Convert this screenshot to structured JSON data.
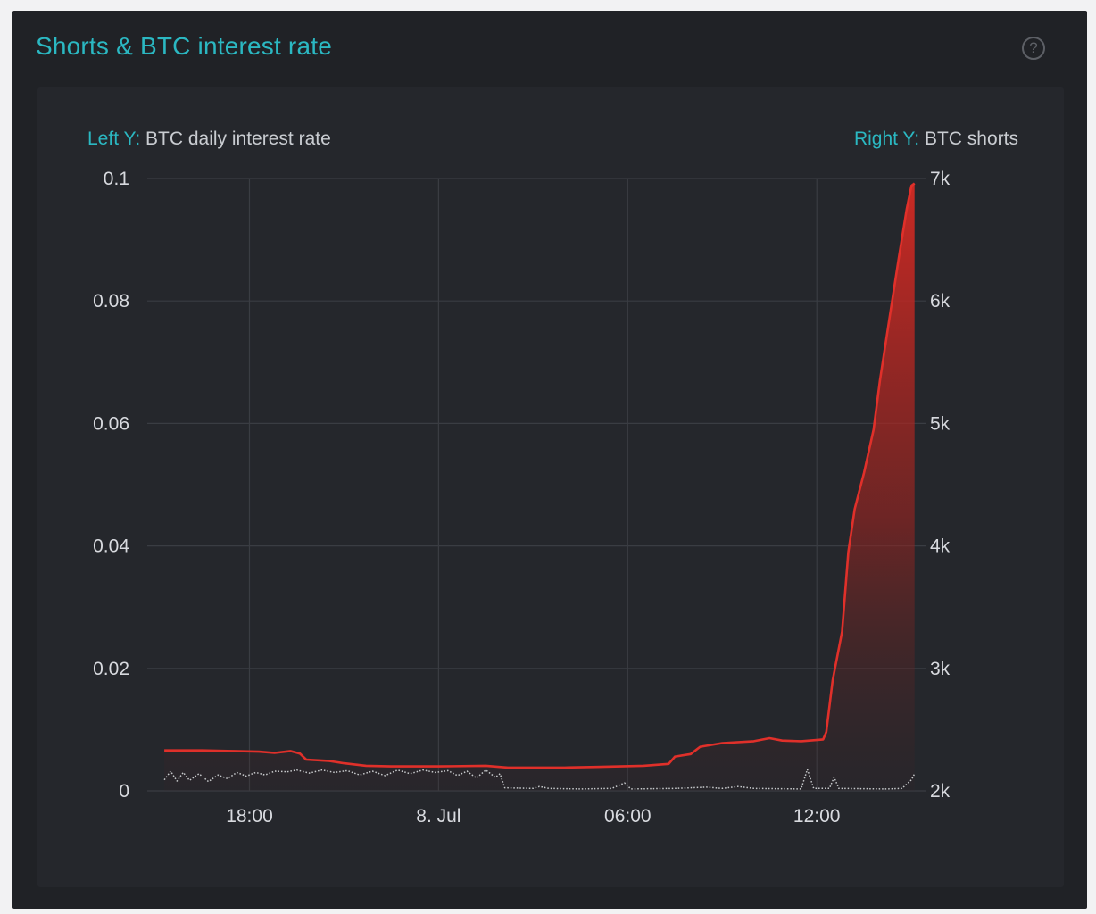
{
  "panel": {
    "title": "Shorts & BTC interest rate",
    "help_icon": "question-circle-icon"
  },
  "axis_captions": {
    "left_key": "Left Y:",
    "left_value": "BTC daily interest rate",
    "right_key": "Right Y:",
    "right_value": "BTC shorts"
  },
  "colors": {
    "background": "#202226",
    "card": "#25272c",
    "accent": "#2bb8c2",
    "shorts_line": "#e0302a",
    "rate_line": "#c8cacd",
    "grid": "#3a3d43"
  },
  "chart_data": {
    "type": "line",
    "x_unit": "hours since 7 Jul 00:00",
    "x_ticks": [
      {
        "label": "18:00",
        "x": 18
      },
      {
        "label": "8. Jul",
        "x": 24
      },
      {
        "label": "06:00",
        "x": 30
      },
      {
        "label": "12:00",
        "x": 36
      }
    ],
    "xlim": [
      14.9,
      39.25
    ],
    "left_axis": {
      "label": "BTC daily interest rate",
      "ylim": [
        0,
        0.1
      ],
      "ticks": [
        {
          "value": 0,
          "label": "0"
        },
        {
          "value": 0.02,
          "label": "0.02"
        },
        {
          "value": 0.04,
          "label": "0.04"
        },
        {
          "value": 0.06,
          "label": "0.06"
        },
        {
          "value": 0.08,
          "label": "0.08"
        },
        {
          "value": 0.1,
          "label": "0.1"
        }
      ]
    },
    "right_axis": {
      "label": "BTC shorts",
      "ylim": [
        2000,
        7000
      ],
      "ticks": [
        {
          "value": 2000,
          "label": "2k"
        },
        {
          "value": 3000,
          "label": "3k"
        },
        {
          "value": 4000,
          "label": "4k"
        },
        {
          "value": 5000,
          "label": "5k"
        },
        {
          "value": 6000,
          "label": "6k"
        },
        {
          "value": 7000,
          "label": "7k"
        }
      ]
    },
    "grid": true,
    "legend": "none",
    "series": [
      {
        "name": "BTC shorts",
        "axis": "right",
        "style": "area",
        "points": [
          [
            15.3,
            2330
          ],
          [
            16.5,
            2330
          ],
          [
            17.5,
            2325
          ],
          [
            18.3,
            2320
          ],
          [
            18.8,
            2310
          ],
          [
            19.3,
            2325
          ],
          [
            19.6,
            2305
          ],
          [
            19.8,
            2255
          ],
          [
            20.5,
            2245
          ],
          [
            21.0,
            2225
          ],
          [
            21.7,
            2205
          ],
          [
            22.5,
            2200
          ],
          [
            24.0,
            2200
          ],
          [
            25.5,
            2205
          ],
          [
            26.2,
            2190
          ],
          [
            27.0,
            2190
          ],
          [
            28.0,
            2190
          ],
          [
            29.0,
            2195
          ],
          [
            30.5,
            2205
          ],
          [
            31.3,
            2220
          ],
          [
            31.5,
            2280
          ],
          [
            32.0,
            2300
          ],
          [
            32.3,
            2360
          ],
          [
            33.0,
            2390
          ],
          [
            34.0,
            2405
          ],
          [
            34.5,
            2430
          ],
          [
            34.9,
            2410
          ],
          [
            35.5,
            2405
          ],
          [
            36.2,
            2420
          ],
          [
            36.3,
            2480
          ],
          [
            36.5,
            2900
          ],
          [
            36.8,
            3300
          ],
          [
            37.0,
            3950
          ],
          [
            37.2,
            4300
          ],
          [
            37.5,
            4600
          ],
          [
            37.8,
            4950
          ],
          [
            38.0,
            5350
          ],
          [
            38.3,
            5850
          ],
          [
            38.6,
            6350
          ],
          [
            38.85,
            6750
          ],
          [
            39.0,
            6940
          ],
          [
            39.1,
            6960
          ]
        ]
      },
      {
        "name": "BTC daily interest rate",
        "axis": "left",
        "style": "dotted-line",
        "points": [
          [
            15.3,
            0.0018
          ],
          [
            15.5,
            0.0032
          ],
          [
            15.7,
            0.0016
          ],
          [
            15.9,
            0.003
          ],
          [
            16.1,
            0.0017
          ],
          [
            16.4,
            0.0028
          ],
          [
            16.7,
            0.0015
          ],
          [
            17.0,
            0.0026
          ],
          [
            17.3,
            0.002
          ],
          [
            17.6,
            0.003
          ],
          [
            17.9,
            0.0024
          ],
          [
            18.2,
            0.003
          ],
          [
            18.5,
            0.0026
          ],
          [
            18.8,
            0.0032
          ],
          [
            19.2,
            0.0031
          ],
          [
            19.5,
            0.0034
          ],
          [
            19.9,
            0.0029
          ],
          [
            20.3,
            0.0034
          ],
          [
            20.7,
            0.003
          ],
          [
            21.1,
            0.0033
          ],
          [
            21.5,
            0.0026
          ],
          [
            21.9,
            0.0032
          ],
          [
            22.3,
            0.0025
          ],
          [
            22.7,
            0.0034
          ],
          [
            23.1,
            0.0028
          ],
          [
            23.5,
            0.0034
          ],
          [
            23.9,
            0.003
          ],
          [
            24.3,
            0.0033
          ],
          [
            24.6,
            0.0025
          ],
          [
            24.9,
            0.0032
          ],
          [
            25.2,
            0.0021
          ],
          [
            25.5,
            0.0034
          ],
          [
            25.8,
            0.0022
          ],
          [
            25.95,
            0.0028
          ],
          [
            26.1,
            0.0005
          ],
          [
            27.0,
            0.0004
          ],
          [
            27.2,
            0.0007
          ],
          [
            27.5,
            0.0004
          ],
          [
            28.5,
            0.0003
          ],
          [
            29.5,
            0.0004
          ],
          [
            29.9,
            0.0013
          ],
          [
            30.1,
            0.0003
          ],
          [
            31.5,
            0.0004
          ],
          [
            32.5,
            0.0006
          ],
          [
            33.0,
            0.0004
          ],
          [
            33.5,
            0.0007
          ],
          [
            34.0,
            0.0004
          ],
          [
            35.5,
            0.0003
          ],
          [
            35.7,
            0.0035
          ],
          [
            35.9,
            0.0004
          ],
          [
            36.4,
            0.0004
          ],
          [
            36.55,
            0.0022
          ],
          [
            36.7,
            0.0004
          ],
          [
            38.2,
            0.0003
          ],
          [
            38.7,
            0.0004
          ],
          [
            39.0,
            0.0018
          ],
          [
            39.1,
            0.0028
          ]
        ]
      }
    ]
  }
}
